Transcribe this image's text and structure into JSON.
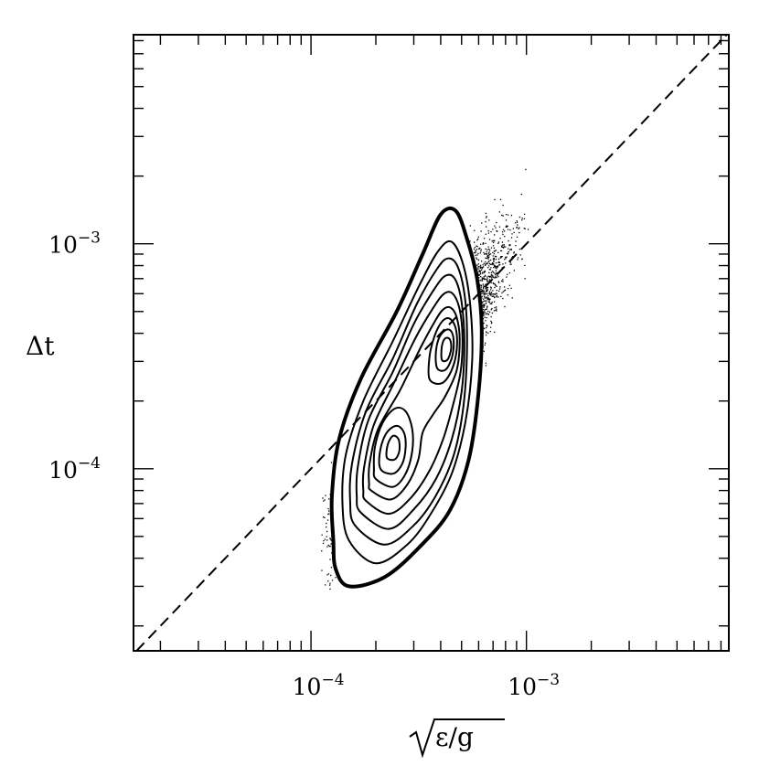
{
  "chart_data": {
    "type": "scatter",
    "title": "",
    "xlabel": "√ε/g",
    "ylabel": "Δt",
    "x_scale": "log",
    "y_scale": "log",
    "xlim": [
      1.5e-05,
      0.0087
    ],
    "ylim": [
      1.55e-05,
      0.0085
    ],
    "x_tick_labels": [
      {
        "value": 0.0001,
        "base": "10",
        "exp": "−4"
      },
      {
        "value": 0.001,
        "base": "10",
        "exp": "−3"
      }
    ],
    "y_tick_labels": [
      {
        "value": 0.0001,
        "base": "10",
        "exp": "−4"
      },
      {
        "value": 0.001,
        "base": "10",
        "exp": "−3"
      }
    ],
    "reference_line": {
      "style": "dashed",
      "relation": "y = x"
    },
    "scatter_cloud": {
      "mode_points": [
        {
          "x": 0.00024,
          "y": 0.00014
        },
        {
          "x": 0.00043,
          "y": 0.00036
        }
      ],
      "x_extent": [
        0.00011,
        0.0011
      ],
      "y_extent": [
        2.6e-05,
        0.0045
      ]
    },
    "contours": [
      {
        "level": 1,
        "points": [
          [
            0.00013,
            3.6e-05
          ],
          [
            0.00015,
            3e-05
          ],
          [
            0.00022,
            3.3e-05
          ],
          [
            0.00032,
            4.5e-05
          ],
          [
            0.00044,
            6.5e-05
          ],
          [
            0.00054,
            0.00011
          ],
          [
            0.0006,
            0.00022
          ],
          [
            0.00062,
            0.00042
          ],
          [
            0.00059,
            0.0007
          ],
          [
            0.00053,
            0.00105
          ],
          [
            0.00047,
            0.0014
          ],
          [
            0.0004,
            0.00135
          ],
          [
            0.00033,
            0.0009
          ],
          [
            0.00025,
            0.0005
          ],
          [
            0.00017,
            0.00025
          ],
          [
            0.000135,
            0.000135
          ],
          [
            0.000125,
            7.5e-05
          ],
          [
            0.000127,
            4.8e-05
          ]
        ]
      },
      {
        "level": 2,
        "points": [
          [
            0.00015,
            4.8e-05
          ],
          [
            0.0002,
            3.8e-05
          ],
          [
            0.00028,
            4.6e-05
          ],
          [
            0.00036,
            6.3e-05
          ],
          [
            0.00045,
            9.5e-05
          ],
          [
            0.00052,
            0.00016
          ],
          [
            0.00056,
            0.0003
          ],
          [
            0.00055,
            0.00052
          ],
          [
            0.00051,
            0.0008
          ],
          [
            0.00045,
            0.00102
          ],
          [
            0.00039,
            0.00093
          ],
          [
            0.00032,
            0.00066
          ],
          [
            0.00024,
            0.00037
          ],
          [
            0.000175,
            0.0002
          ],
          [
            0.000145,
            0.000115
          ],
          [
            0.00014,
            7e-05
          ]
        ]
      },
      {
        "level": 3,
        "points": [
          [
            0.00016,
            5.6e-05
          ],
          [
            0.00022,
            4.6e-05
          ],
          [
            0.0003,
            5.6e-05
          ],
          [
            0.00038,
            7.6e-05
          ],
          [
            0.00046,
            0.000115
          ],
          [
            0.00051,
            0.00019
          ],
          [
            0.00053,
            0.00034
          ],
          [
            0.00052,
            0.00056
          ],
          [
            0.00048,
            0.00079
          ],
          [
            0.00043,
            0.00086
          ],
          [
            0.00038,
            0.00076
          ],
          [
            0.00031,
            0.00054
          ],
          [
            0.00024,
            0.00031
          ],
          [
            0.00018,
            0.00018
          ],
          [
            0.000155,
            0.000105
          ],
          [
            0.000152,
            7.2e-05
          ]
        ]
      },
      {
        "level": 4,
        "points": [
          [
            0.00017,
            6.4e-05
          ],
          [
            0.00023,
            5.4e-05
          ],
          [
            0.0003,
            6.6e-05
          ],
          [
            0.00038,
            9e-05
          ],
          [
            0.00045,
            0.000135
          ],
          [
            0.0005,
            0.00022
          ],
          [
            0.000515,
            0.00036
          ],
          [
            0.0005,
            0.00055
          ],
          [
            0.000465,
            0.0007
          ],
          [
            0.00042,
            0.00072
          ],
          [
            0.00037,
            0.00062
          ],
          [
            0.0003,
            0.00044
          ],
          [
            0.00024,
            0.00027
          ],
          [
            0.000185,
            0.000165
          ],
          [
            0.000165,
            0.000102
          ],
          [
            0.000163,
            7.6e-05
          ]
        ]
      },
      {
        "level": 5,
        "points": [
          [
            0.00018,
            7.2e-05
          ],
          [
            0.00023,
            6.3e-05
          ],
          [
            0.00029,
            7.4e-05
          ],
          [
            0.000355,
            9.8e-05
          ],
          [
            0.00041,
            0.000135
          ],
          [
            0.000455,
            0.00019
          ],
          [
            0.000495,
            0.00027
          ],
          [
            0.000505,
            0.00038
          ],
          [
            0.00049,
            0.00051
          ],
          [
            0.000455,
            0.0006
          ],
          [
            0.000415,
            0.0006
          ],
          [
            0.00037,
            0.00052
          ],
          [
            0.000305,
            0.00038
          ],
          [
            0.000245,
            0.000245
          ],
          [
            0.000195,
            0.000155
          ],
          [
            0.000176,
            0.0001
          ],
          [
            0.000175,
            8e-05
          ]
        ]
      },
      {
        "level": 6,
        "points": [
          [
            0.00019,
            8e-05
          ],
          [
            0.000235,
            7.3e-05
          ],
          [
            0.00028,
            8.5e-05
          ],
          [
            0.000315,
            0.00011
          ],
          [
            0.00033,
            0.000145
          ],
          [
            0.00037,
            0.000175
          ],
          [
            0.00042,
            0.00021
          ],
          [
            0.000475,
            0.000275
          ],
          [
            0.00049,
            0.000375
          ],
          [
            0.000475,
            0.00047
          ],
          [
            0.000445,
            0.00052
          ],
          [
            0.00041,
            0.00051
          ],
          [
            0.000375,
            0.00045
          ],
          [
            0.00032,
            0.00034
          ],
          [
            0.00026,
            0.000225
          ],
          [
            0.000205,
            0.00015
          ],
          [
            0.000187,
            0.000105
          ],
          [
            0.000186,
            8.6e-05
          ]
        ]
      },
      {
        "level": 7,
        "points": [
          [
            0.0002,
            9e-05
          ],
          [
            0.00024,
            8.3e-05
          ],
          [
            0.000275,
            9.5e-05
          ],
          [
            0.000295,
            0.00012
          ],
          [
            0.000295,
            0.00015
          ],
          [
            0.000275,
            0.00018
          ],
          [
            0.000245,
            0.000185
          ],
          [
            0.000215,
            0.00016
          ],
          [
            0.000198,
            0.000125
          ],
          [
            0.000196,
            0.0001
          ]
        ]
      },
      {
        "level": 8,
        "points": [
          [
            0.00021,
            0.0001
          ],
          [
            0.00024,
            9.5e-05
          ],
          [
            0.000265,
            0.000105
          ],
          [
            0.000275,
            0.000125
          ],
          [
            0.00027,
            0.000145
          ],
          [
            0.00025,
            0.000155
          ],
          [
            0.000225,
            0.000145
          ],
          [
            0.00021,
            0.000122
          ]
        ]
      },
      {
        "level": 9,
        "points": [
          [
            0.000225,
            0.000112
          ],
          [
            0.000245,
            0.00011
          ],
          [
            0.000257,
            0.00012
          ],
          [
            0.000255,
            0.000135
          ],
          [
            0.00024,
            0.00014
          ],
          [
            0.000227,
            0.000128
          ]
        ]
      },
      {
        "level": 10,
        "points": [
          [
            0.000355,
            0.00025
          ],
          [
            0.000405,
            0.00024
          ],
          [
            0.00045,
            0.000275
          ],
          [
            0.000475,
            0.00034
          ],
          [
            0.00047,
            0.00042
          ],
          [
            0.00044,
            0.000465
          ],
          [
            0.000405,
            0.00045
          ],
          [
            0.000375,
            0.00039
          ],
          [
            0.000355,
            0.000315
          ]
        ]
      },
      {
        "level": 11,
        "points": [
          [
            0.000385,
            0.00028
          ],
          [
            0.00042,
            0.000275
          ],
          [
            0.00045,
            0.00031
          ],
          [
            0.00046,
            0.00036
          ],
          [
            0.00045,
            0.000405
          ],
          [
            0.000425,
            0.000415
          ],
          [
            0.000395,
            0.000385
          ],
          [
            0.00038,
            0.00033
          ]
        ]
      },
      {
        "level": 12,
        "points": [
          [
            0.000405,
            0.000305
          ],
          [
            0.00043,
            0.000305
          ],
          [
            0.000447,
            0.00034
          ],
          [
            0.000442,
            0.000375
          ],
          [
            0.00042,
            0.00038
          ],
          [
            0.000405,
            0.00035
          ]
        ]
      }
    ]
  }
}
